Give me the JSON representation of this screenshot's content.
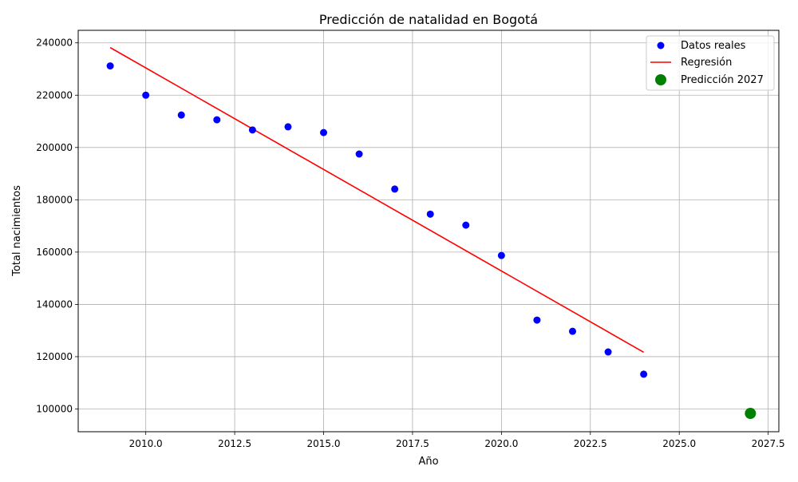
{
  "chart_data": {
    "type": "scatter",
    "title": "Predicción de natalidad en Bogotá",
    "xlabel": "Año",
    "ylabel": "Total nacimientos",
    "xlim": [
      2008.1,
      2027.8
    ],
    "ylim": [
      91300,
      244800
    ],
    "x_ticks": [
      {
        "value": 2010,
        "label": "2010.0"
      },
      {
        "value": 2012.5,
        "label": "2012.5"
      },
      {
        "value": 2015,
        "label": "2015.0"
      },
      {
        "value": 2017.5,
        "label": "2017.5"
      },
      {
        "value": 2020,
        "label": "2020.0"
      },
      {
        "value": 2022.5,
        "label": "2022.5"
      },
      {
        "value": 2025,
        "label": "2025.0"
      },
      {
        "value": 2027.5,
        "label": "2027.5"
      }
    ],
    "y_ticks": [
      {
        "value": 100000,
        "label": "100000"
      },
      {
        "value": 120000,
        "label": "120000"
      },
      {
        "value": 140000,
        "label": "140000"
      },
      {
        "value": 160000,
        "label": "160000"
      },
      {
        "value": 180000,
        "label": "180000"
      },
      {
        "value": 200000,
        "label": "200000"
      },
      {
        "value": 220000,
        "label": "220000"
      },
      {
        "value": 240000,
        "label": "240000"
      }
    ],
    "grid": true,
    "legend_position": "top-right",
    "series": [
      {
        "name": "Datos reales",
        "type": "scatter",
        "color": "#0000ff",
        "x": [
          2009,
          2010,
          2011,
          2012,
          2013,
          2014,
          2015,
          2016,
          2017,
          2018,
          2019,
          2020,
          2021,
          2022,
          2023,
          2024
        ],
        "y": [
          231200,
          220000,
          212400,
          210600,
          206700,
          207900,
          205700,
          197500,
          184100,
          174500,
          170300,
          158700,
          134000,
          129700,
          121800,
          113300
        ]
      },
      {
        "name": "Regresión",
        "type": "line",
        "color": "#ff0000",
        "x": [
          2009,
          2024
        ],
        "y": [
          238200,
          121700
        ]
      },
      {
        "name": "Predicción 2027",
        "type": "scatter",
        "color": "#008000",
        "x": [
          2027
        ],
        "y": [
          98300
        ]
      }
    ]
  }
}
